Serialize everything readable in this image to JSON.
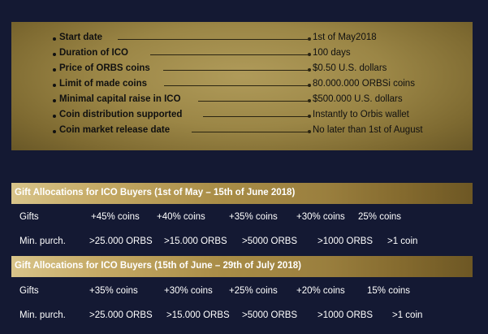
{
  "info": {
    "rows": [
      {
        "label": "Start date",
        "value": "1st of May2018"
      },
      {
        "label": "Duration of  ICO",
        "value": "100 days"
      },
      {
        "label": "Price of ORBS coins",
        "value": "$0.50 U.S. dollars"
      },
      {
        "label": "Limit of made coins",
        "value": "80.000.000 ORBSi coins"
      },
      {
        "label": "Minimal capital raise in ICO",
        "value": "$500.000 U.S. dollars"
      },
      {
        "label": "Coin distribution supported",
        "value": "Instantly to Orbis wallet"
      },
      {
        "label": "Coin market release date",
        "value": "No later than 1st of August"
      }
    ]
  },
  "sections": [
    {
      "title": "Gift Allocations for ICO Buyers (1st of May  – 15th of June 2018)",
      "gifts_label": "Gifts",
      "gifts": [
        "+45% coins",
        "+40% coins",
        "+35% coins",
        "+30% coins",
        "25%  coins"
      ],
      "min_label": "Min. purch.",
      "mins": [
        ">25.000 ORBS",
        ">15.000 ORBS",
        ">5000 ORBS",
        ">1000 ORBS",
        ">1 coin"
      ]
    },
    {
      "title": "Gift Allocations for ICO Buyers (15th of June – 29th of July 2018)",
      "gifts_label": "Gifts",
      "gifts": [
        "+35% coins",
        "+30% coins",
        "+25% coins",
        "+20% coins",
        "15% coins"
      ],
      "min_label": "Min. purch.",
      "mins": [
        ">25.000 ORBS",
        ">15.000 ORBS",
        ">5000 ORBS",
        ">1000 ORBS",
        ">1 coin"
      ]
    }
  ]
}
